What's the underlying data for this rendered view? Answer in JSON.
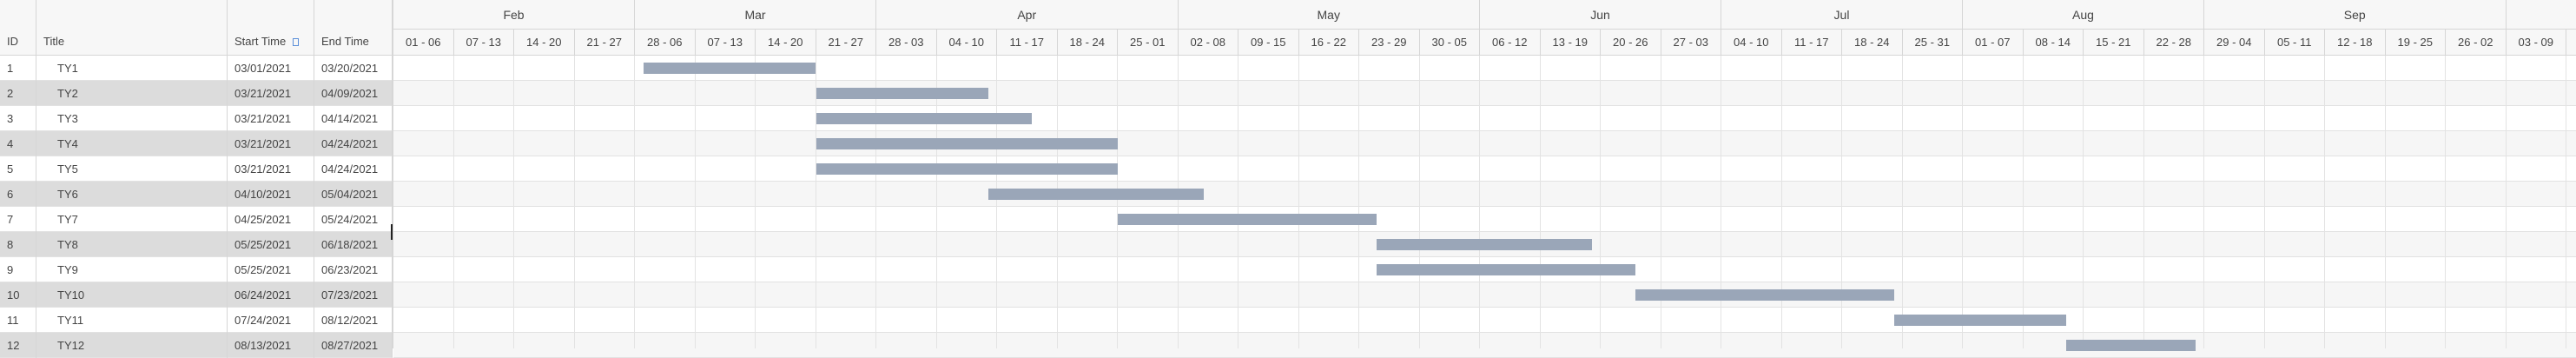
{
  "grid": {
    "columns": {
      "id": "ID",
      "title": "Title",
      "start": "Start Time",
      "end": "End Time"
    },
    "rows": [
      {
        "id": "1",
        "title": "TY1",
        "start": "03/01/2021",
        "end": "03/20/2021"
      },
      {
        "id": "2",
        "title": "TY2",
        "start": "03/21/2021",
        "end": "04/09/2021"
      },
      {
        "id": "3",
        "title": "TY3",
        "start": "03/21/2021",
        "end": "04/14/2021"
      },
      {
        "id": "4",
        "title": "TY4",
        "start": "03/21/2021",
        "end": "04/24/2021"
      },
      {
        "id": "5",
        "title": "TY5",
        "start": "03/21/2021",
        "end": "04/24/2021"
      },
      {
        "id": "6",
        "title": "TY6",
        "start": "04/10/2021",
        "end": "05/04/2021"
      },
      {
        "id": "7",
        "title": "TY7",
        "start": "04/25/2021",
        "end": "05/24/2021"
      },
      {
        "id": "8",
        "title": "TY8",
        "start": "05/25/2021",
        "end": "06/18/2021"
      },
      {
        "id": "9",
        "title": "TY9",
        "start": "05/25/2021",
        "end": "06/23/2021"
      },
      {
        "id": "10",
        "title": "TY10",
        "start": "06/24/2021",
        "end": "07/23/2021"
      },
      {
        "id": "11",
        "title": "TY11",
        "start": "07/24/2021",
        "end": "08/12/2021"
      },
      {
        "id": "12",
        "title": "TY12",
        "start": "08/13/2021",
        "end": "08/27/2021"
      }
    ]
  },
  "timeline": {
    "months": [
      "Feb",
      "Mar",
      "Apr",
      "May",
      "Jun",
      "Jul",
      "Aug",
      "Sep"
    ],
    "weeks": [
      "01 - 06",
      "07 - 13",
      "14 - 20",
      "21 - 27",
      "28 - 06",
      "07 - 13",
      "14 - 20",
      "21 - 27",
      "28 - 03",
      "04 - 10",
      "11 - 17",
      "18 - 24",
      "25 - 01",
      "02 - 08",
      "09 - 15",
      "16 - 22",
      "23 - 29",
      "30 - 05",
      "06 - 12",
      "13 - 19",
      "20 - 26",
      "27 - 03",
      "04 - 10",
      "11 - 17",
      "18 - 24",
      "25 - 31",
      "01 - 07",
      "08 - 14",
      "15 - 21",
      "22 - 28",
      "29 - 04",
      "05 - 11",
      "12 - 18",
      "19 - 25",
      "26 - 02",
      "03 - 09"
    ],
    "bar_color": "#9aa6b8"
  }
}
